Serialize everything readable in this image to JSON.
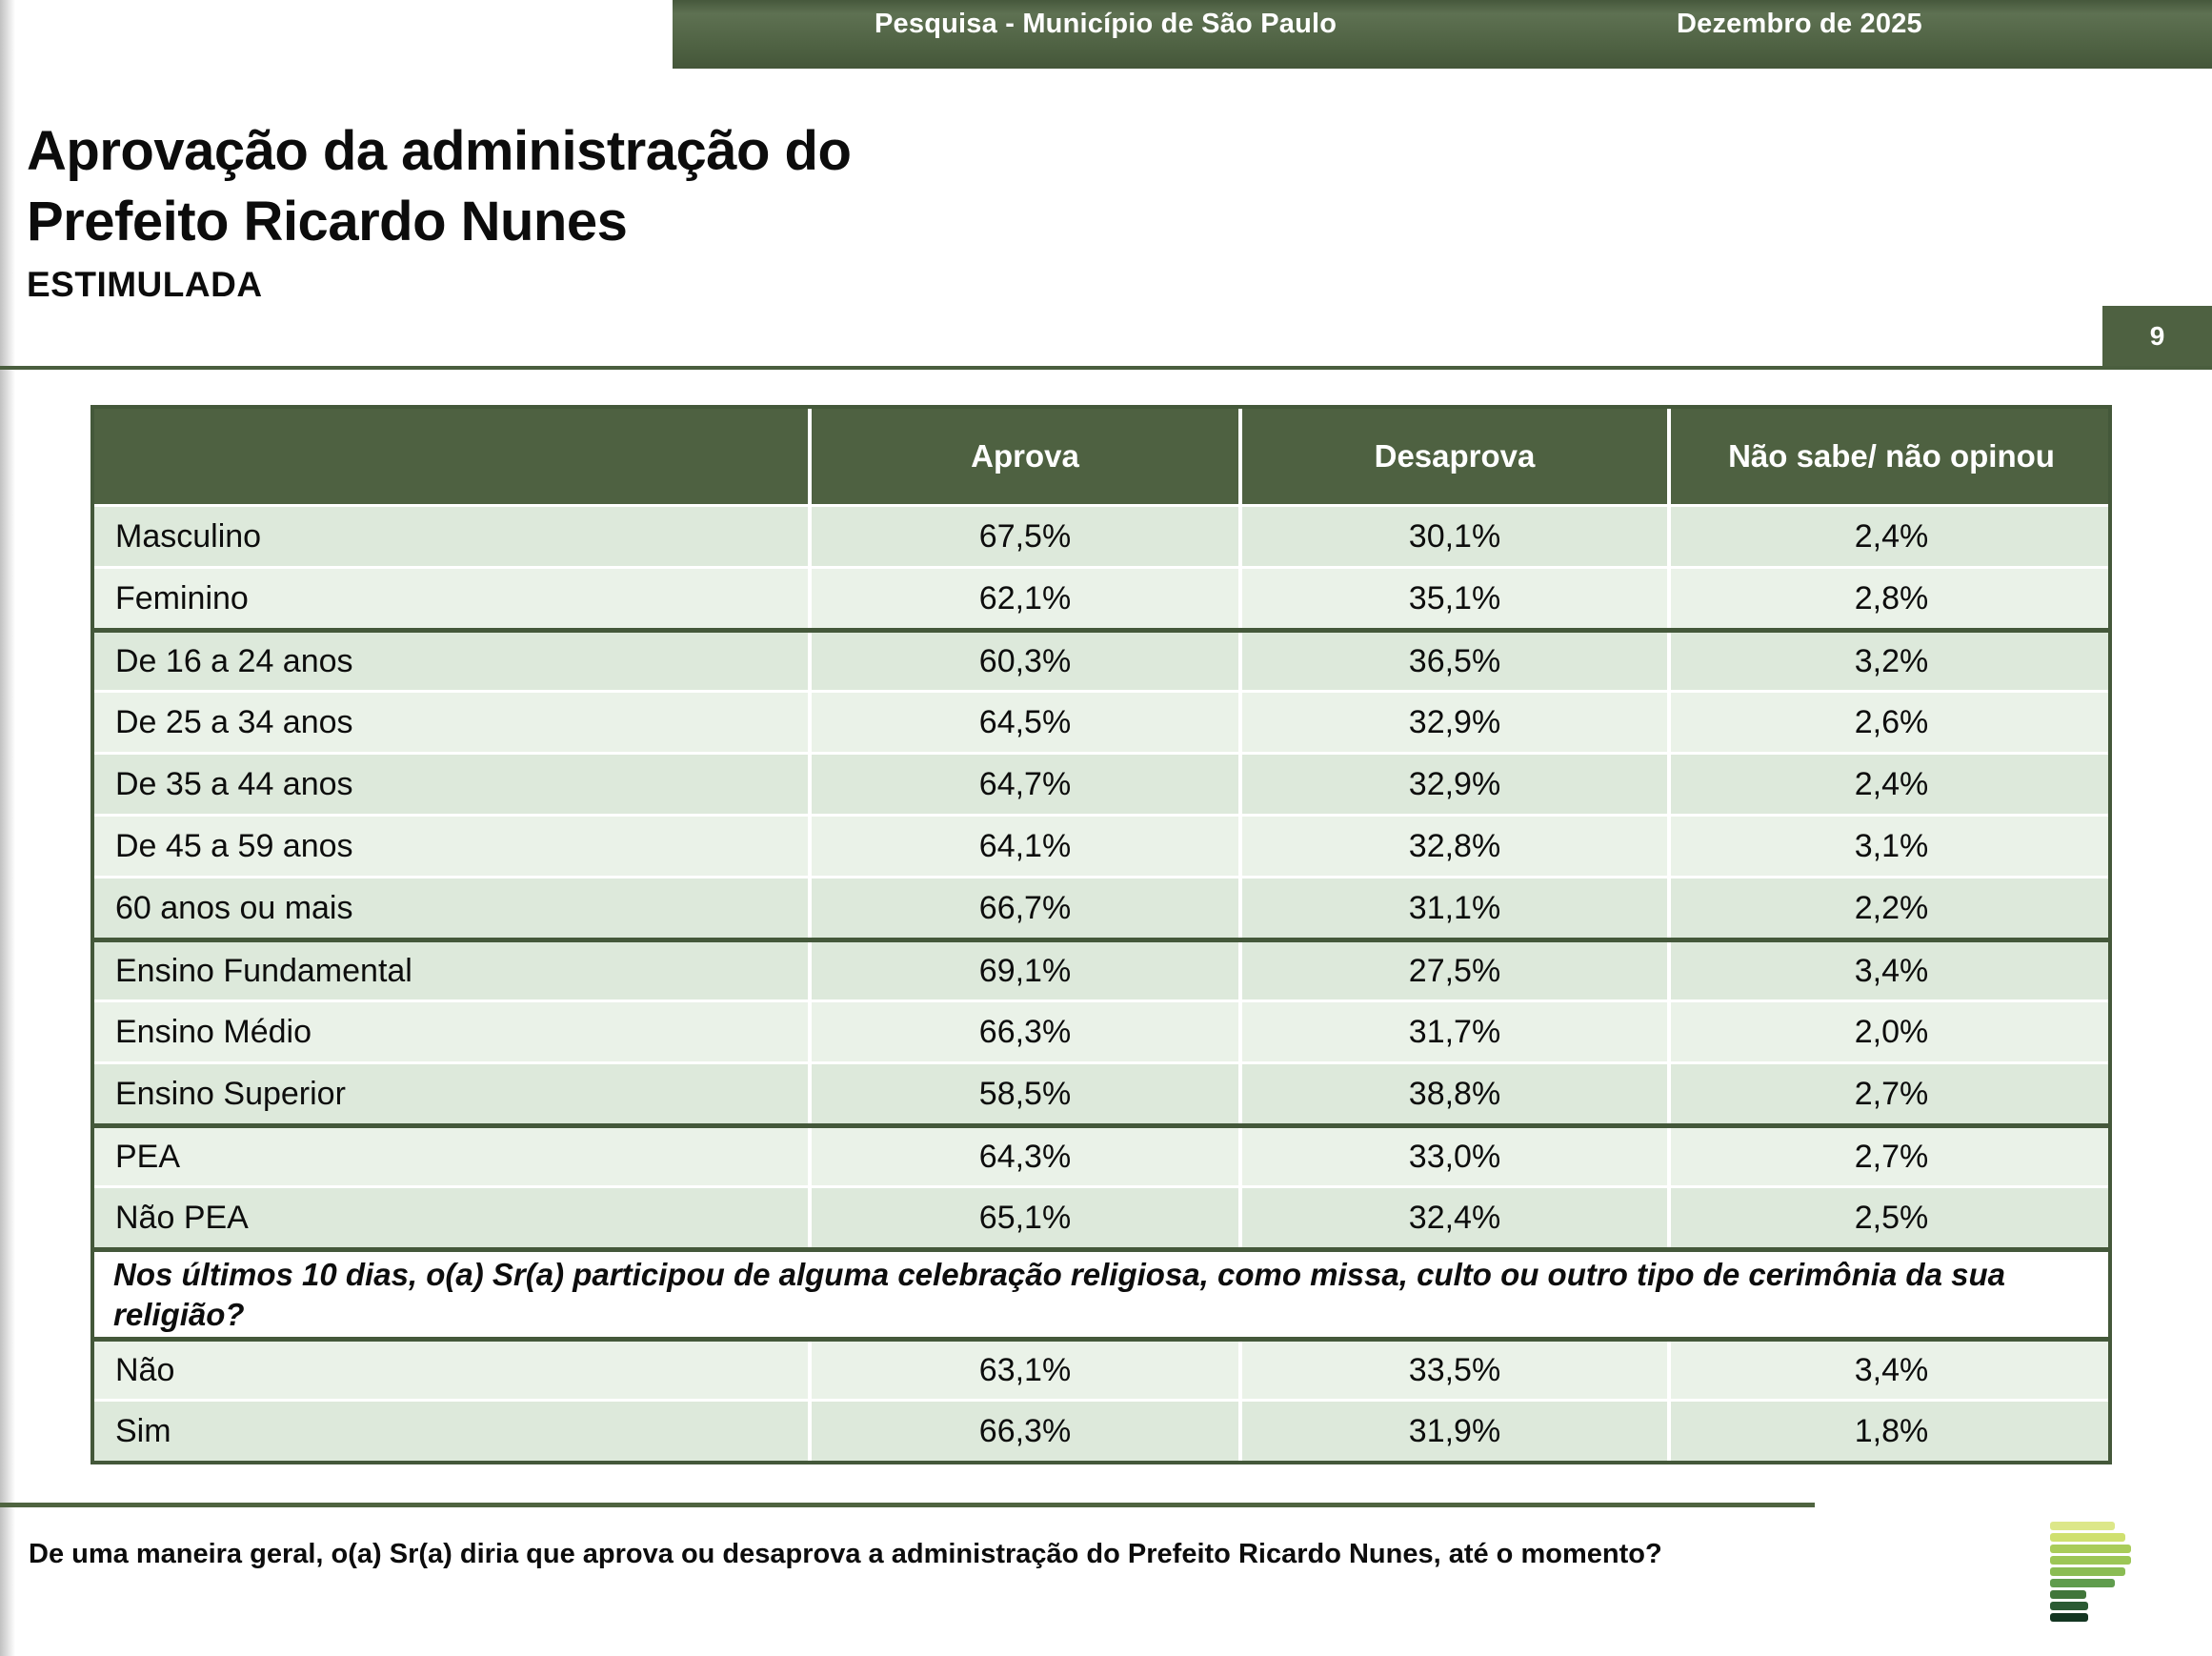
{
  "banner": {
    "title": "Pesquisa - Município de São Paulo",
    "date": "Dezembro de 2025"
  },
  "heading": {
    "line1": "Aprovação da administração do",
    "line2": "Prefeito Ricardo Nunes",
    "subtitle": "ESTIMULADA",
    "page_number": "9"
  },
  "table": {
    "headers": [
      "",
      "Aprova",
      "Desaprova",
      "Não sabe/ não opinou"
    ],
    "rows": [
      {
        "label": "Masculino",
        "aprova": "67,5%",
        "desaprova": "30,1%",
        "nao_sabe": "2,4%",
        "shade": "dark",
        "divider": "thin"
      },
      {
        "label": "Feminino",
        "aprova": "62,1%",
        "desaprova": "35,1%",
        "nao_sabe": "2,8%",
        "shade": "light",
        "divider": "thin"
      },
      {
        "label": "De 16 a 24 anos",
        "aprova": "60,3%",
        "desaprova": "36,5%",
        "nao_sabe": "3,2%",
        "shade": "dark",
        "divider": "group"
      },
      {
        "label": "De 25 a 34 anos",
        "aprova": "64,5%",
        "desaprova": "32,9%",
        "nao_sabe": "2,6%",
        "shade": "light",
        "divider": "thin"
      },
      {
        "label": "De 35 a 44 anos",
        "aprova": "64,7%",
        "desaprova": "32,9%",
        "nao_sabe": "2,4%",
        "shade": "dark",
        "divider": "thin"
      },
      {
        "label": "De 45 a 59 anos",
        "aprova": "64,1%",
        "desaprova": "32,8%",
        "nao_sabe": "3,1%",
        "shade": "light",
        "divider": "thin"
      },
      {
        "label": "60 anos ou mais",
        "aprova": "66,7%",
        "desaprova": "31,1%",
        "nao_sabe": "2,2%",
        "shade": "dark",
        "divider": "thin"
      },
      {
        "label": "Ensino Fundamental",
        "aprova": "69,1%",
        "desaprova": "27,5%",
        "nao_sabe": "3,4%",
        "shade": "dark",
        "divider": "group"
      },
      {
        "label": "Ensino Médio",
        "aprova": "66,3%",
        "desaprova": "31,7%",
        "nao_sabe": "2,0%",
        "shade": "light",
        "divider": "thin"
      },
      {
        "label": "Ensino Superior",
        "aprova": "58,5%",
        "desaprova": "38,8%",
        "nao_sabe": "2,7%",
        "shade": "dark",
        "divider": "thin"
      },
      {
        "label": "PEA",
        "aprova": "64,3%",
        "desaprova": "33,0%",
        "nao_sabe": "2,7%",
        "shade": "light",
        "divider": "group"
      },
      {
        "label": "Não PEA",
        "aprova": "65,1%",
        "desaprova": "32,4%",
        "nao_sabe": "2,5%",
        "shade": "dark",
        "divider": "thin"
      },
      {
        "type": "question",
        "divider": "group",
        "text": "Nos últimos 10 dias, o(a) Sr(a) participou de alguma celebração religiosa, como missa, culto ou outro tipo de cerimônia da sua religião?"
      },
      {
        "label": "Não",
        "aprova": "63,1%",
        "desaprova": "33,5%",
        "nao_sabe": "3,4%",
        "shade": "light",
        "divider": "group"
      },
      {
        "label": "Sim",
        "aprova": "66,3%",
        "desaprova": "31,9%",
        "nao_sabe": "1,8%",
        "shade": "dark",
        "divider": "thin"
      }
    ]
  },
  "footer": {
    "question": "De uma maneira geral, o(a) Sr(a) diria que aprova ou desaprova a administração do Prefeito Ricardo Nunes, até o momento?"
  },
  "logo": {
    "bars": [
      {
        "color": "#dce789",
        "width": 68
      },
      {
        "color": "#cfe06f",
        "width": 79
      },
      {
        "color": "#a9cc5a",
        "width": 85
      },
      {
        "color": "#9cc656",
        "width": 85
      },
      {
        "color": "#8abc53",
        "width": 79
      },
      {
        "color": "#5f9c4d",
        "width": 68
      },
      {
        "color": "#41763a",
        "width": 38
      },
      {
        "color": "#2b5a33",
        "width": 40
      },
      {
        "color": "#143622",
        "width": 40
      }
    ]
  },
  "colors": {
    "header_green": "#4e6141",
    "border_green": "#44583a",
    "row_dark": "#dde9db",
    "row_light": "#eaf2e8",
    "banner_green": "#4f6244",
    "text_black": "#0d0d0d",
    "white": "#ffffff"
  }
}
